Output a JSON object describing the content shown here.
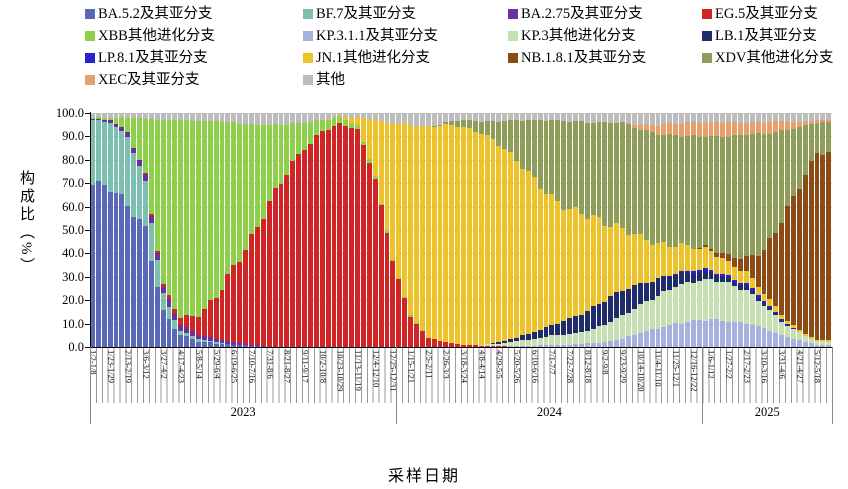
{
  "chart_data": {
    "type": "bar",
    "stacked": true,
    "title": "",
    "xlabel": "采样日期",
    "ylabel": "构成比（%）",
    "ylim": [
      0,
      100
    ],
    "ytick_step": 10,
    "ytick_decimals": 1,
    "grid": true,
    "legend_position": "top",
    "bars_total": 126,
    "ticks_every_n_bars": 3,
    "x_tick_labels": [
      "1/2-1/8",
      "1/23-1/29",
      "2/13-2/19",
      "3/6-3/12",
      "3/27-4/2",
      "4/17-4/23",
      "5/8-5/14",
      "5/29-6/4",
      "6/19-6/25",
      "7/10-7/16",
      "7/31-8/6",
      "8/21-8/27",
      "9/11-9/17",
      "10/2-10/8",
      "10/23-10/29",
      "11/13-11/19",
      "12/4-12/10",
      "12/25-12/31",
      "1/15-1/21",
      "2/5-2/11",
      "2/26-3/3",
      "3/18-3/24",
      "4/8-4/14",
      "4/29-5/5",
      "5/20-5/26",
      "6/10-6/16",
      "7/1-7/7",
      "7/22-7/28",
      "8/12-8/18",
      "9/2-9/8",
      "9/23-9/29",
      "10/14-10/20",
      "11/4-11/10",
      "11/25-12/1",
      "12/16-12/22",
      "1/6-1/12",
      "1/27-2/2",
      "2/17-2/23",
      "3/10-3/16",
      "3/31-4/6",
      "4/21-4/27",
      "5/12-5/18"
    ],
    "year_groups": [
      {
        "label": "2023",
        "start_bar": 0,
        "end_bar": 51
      },
      {
        "label": "2024",
        "start_bar": 52,
        "end_bar": 103
      },
      {
        "label": "2025",
        "start_bar": 104,
        "end_bar": 125
      }
    ],
    "series": [
      {
        "name": "BA.5.2及其亚分支",
        "color": "#5a68b8",
        "values": [
          70,
          68,
          61,
          50,
          15,
          5,
          2.5,
          1.5,
          1,
          0.5,
          0,
          0,
          0,
          0,
          0,
          0,
          0,
          0,
          0,
          0,
          0,
          0,
          0,
          0,
          0,
          0,
          0,
          0,
          0,
          0,
          0,
          0,
          0,
          0,
          0,
          0,
          0,
          0,
          0,
          0,
          0,
          0
        ]
      },
      {
        "name": "BF.7及其亚分支",
        "color": "#7dbfb0",
        "values": [
          27,
          28,
          29,
          20,
          7,
          2,
          1,
          0.5,
          0,
          0,
          0,
          0,
          0,
          0,
          0,
          0,
          0,
          0,
          0,
          0,
          0,
          0,
          0,
          0,
          0,
          0,
          0,
          0,
          0,
          0,
          0,
          0,
          0,
          0,
          0,
          0,
          0,
          0,
          0,
          0,
          0,
          0
        ]
      },
      {
        "name": "BA.2.75及其亚分支",
        "color": "#6a2fa0",
        "values": [
          0.5,
          1,
          2,
          3,
          3,
          2.5,
          2,
          1.5,
          1,
          0.5,
          0,
          0,
          0,
          0,
          0,
          0,
          0,
          0,
          0,
          0,
          0,
          0,
          0,
          0,
          0,
          0,
          0,
          0,
          0,
          0,
          0,
          0,
          0,
          0,
          0,
          0,
          0,
          0,
          0,
          0,
          0,
          0
        ]
      },
      {
        "name": "EG.5及其亚分支",
        "color": "#d02524",
        "values": [
          0,
          0,
          0,
          0.5,
          1,
          3,
          8,
          18,
          32,
          45,
          62,
          75,
          85,
          92,
          95.5,
          93,
          72,
          37,
          13,
          4,
          2,
          1,
          0.5,
          0.5,
          0,
          0,
          0,
          0,
          0,
          0,
          0,
          0,
          0,
          0,
          0,
          0,
          0,
          0,
          0,
          0,
          0,
          0
        ]
      },
      {
        "name": "XBB其他进化分支",
        "color": "#8ed04c",
        "values": [
          0.5,
          1,
          6,
          24,
          71,
          84.5,
          83,
          75,
          62,
          49,
          33,
          20,
          11,
          5,
          2.5,
          2,
          1,
          0.5,
          0.5,
          0,
          0,
          0,
          0,
          0,
          0,
          0,
          0,
          0,
          0,
          0,
          0,
          0,
          0,
          0,
          0,
          0,
          0,
          0,
          0,
          0,
          0,
          0
        ]
      },
      {
        "name": "KP.3.1.1及其亚分支",
        "color": "#a7b1df",
        "values": [
          0,
          0,
          0,
          0,
          0,
          0,
          0,
          0,
          0,
          0,
          0,
          0,
          0,
          0,
          0,
          0,
          0,
          0,
          0,
          0,
          0,
          0,
          0,
          0,
          0.5,
          0.5,
          1,
          1,
          1.5,
          2,
          3.5,
          6,
          8,
          10,
          11,
          12,
          11,
          10,
          8,
          5,
          3,
          1
        ]
      },
      {
        "name": "KP.3其他进化分支",
        "color": "#c6e0b4",
        "values": [
          0,
          0,
          0,
          0,
          0,
          0,
          0,
          0,
          0,
          0,
          0,
          0,
          0,
          0,
          0,
          0,
          0,
          0,
          0,
          0,
          0,
          0,
          0.5,
          1,
          2,
          3,
          4,
          4.5,
          5.5,
          7.5,
          10,
          12,
          14,
          16,
          17,
          17,
          16,
          14,
          10,
          6,
          3,
          1.5
        ]
      },
      {
        "name": "LB.1及其亚分支",
        "color": "#1e2c6b",
        "values": [
          0,
          0,
          0,
          0,
          0,
          0,
          0,
          0,
          0,
          0,
          0,
          0,
          0,
          0,
          0,
          0,
          0,
          0,
          0,
          0,
          0,
          0,
          0,
          0.5,
          1.5,
          3,
          4.5,
          6.5,
          8.5,
          10.5,
          11,
          9,
          7,
          5,
          4,
          3,
          2,
          2,
          1,
          0.5,
          0,
          0
        ]
      },
      {
        "name": "LP.8.1及其亚分支",
        "color": "#2a22cf",
        "values": [
          0,
          0,
          0,
          0,
          0,
          0,
          0,
          0,
          0,
          0,
          0,
          0,
          0,
          0,
          0,
          0,
          0,
          0,
          0,
          0,
          0,
          0,
          0,
          0,
          0,
          0,
          0,
          0,
          0,
          0,
          0,
          0,
          0,
          0.5,
          1,
          1,
          1,
          1,
          1,
          0.5,
          0,
          0
        ]
      },
      {
        "name": "JN.1其他进化分支",
        "color": "#ecc32d",
        "values": [
          0,
          0,
          0,
          0,
          0,
          0,
          0,
          0,
          0,
          0,
          0,
          0,
          0,
          0,
          0.5,
          3,
          24,
          58,
          81.5,
          90,
          93,
          93,
          90.5,
          85,
          76,
          65,
          54,
          47,
          41,
          33,
          26,
          20,
          15,
          12,
          10,
          8,
          6,
          5,
          3,
          2,
          1,
          0.5
        ]
      },
      {
        "name": "NB.1.8.1及其亚分支",
        "color": "#8c4a15",
        "values": [
          0,
          0,
          0,
          0,
          0,
          0,
          0,
          0,
          0,
          0,
          0,
          0,
          0,
          0,
          0,
          0,
          0,
          0,
          0,
          0,
          0,
          0,
          0,
          0,
          0,
          0,
          0,
          0,
          0,
          0,
          0,
          0,
          0,
          0,
          0,
          1,
          3,
          6,
          18,
          40,
          62,
          80
        ]
      },
      {
        "name": "XDV其他进化分支",
        "color": "#8e9d59",
        "values": [
          0,
          0,
          0,
          0,
          0,
          0,
          0,
          0,
          0,
          0,
          0,
          0,
          0,
          0,
          0,
          0,
          0,
          0,
          0,
          0,
          1,
          3,
          5,
          9.5,
          17,
          25.5,
          33.5,
          37.5,
          39.5,
          43,
          45.5,
          46,
          47,
          47,
          47,
          48,
          51,
          53,
          50,
          38.5,
          25,
          13
        ]
      },
      {
        "name": "XEC及其亚分支",
        "color": "#e5a06b",
        "values": [
          0,
          0,
          0,
          0,
          0,
          0,
          0,
          0,
          0,
          0,
          0,
          0,
          0,
          0,
          0,
          0,
          0,
          0,
          0,
          0,
          0,
          0,
          0,
          0,
          0,
          0,
          0,
          0,
          0,
          0,
          0,
          2,
          4,
          5,
          6,
          6,
          6,
          5,
          5,
          4,
          2,
          1
        ]
      },
      {
        "name": "其他",
        "color": "#bcbcbc",
        "values": [
          2,
          2,
          2,
          2.5,
          3,
          3,
          3.5,
          3.5,
          4,
          5,
          5,
          5,
          4,
          3,
          1.5,
          2,
          3,
          4.5,
          5,
          6,
          4,
          3,
          3.5,
          3.5,
          3,
          3,
          3,
          3.5,
          4,
          4,
          4,
          5,
          5,
          4.5,
          4,
          4,
          4,
          4,
          4,
          3.5,
          4,
          3
        ]
      }
    ]
  }
}
